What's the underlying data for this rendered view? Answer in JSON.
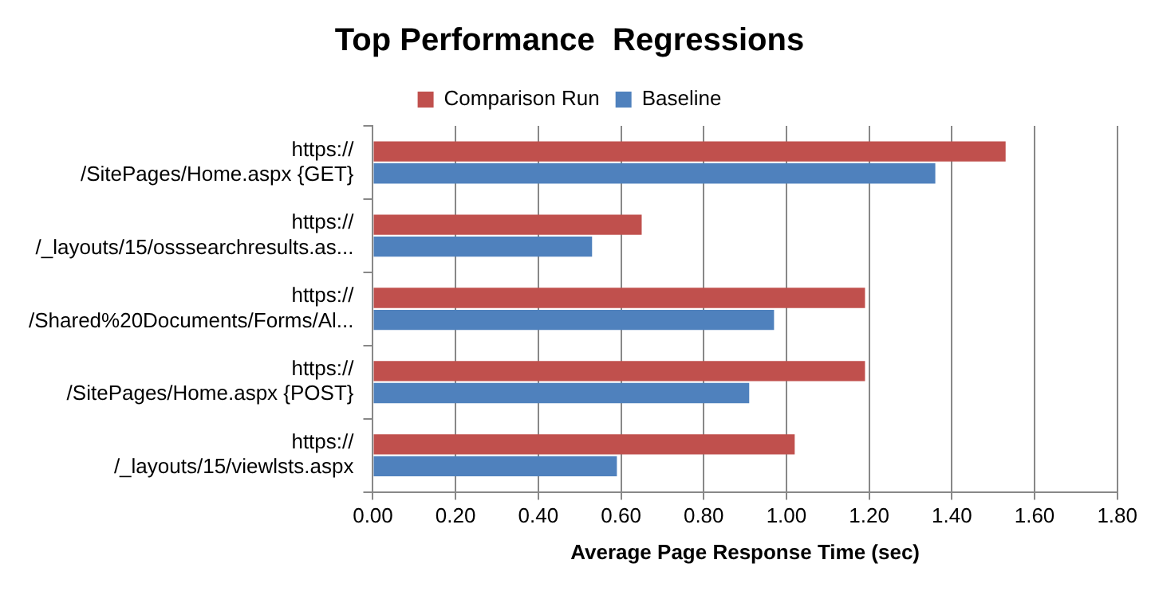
{
  "chart_data": {
    "type": "bar",
    "orientation": "horizontal",
    "title": "Top Performance  Regressions",
    "xlabel": "Average Page Response Time (sec)",
    "categories": [
      "https://\n/SitePages/Home.aspx {GET}",
      "https://\n/_layouts/15/osssearchresults.as...",
      "https://\n/Shared%20Documents/Forms/Al...",
      "https://\n/SitePages/Home.aspx {POST}",
      "https://\n/_layouts/15/viewlsts.aspx"
    ],
    "series": [
      {
        "name": "Comparison Run",
        "color": "#c0504d",
        "values": [
          1.53,
          0.65,
          1.19,
          1.19,
          1.02
        ]
      },
      {
        "name": "Baseline",
        "color": "#4f81bd",
        "values": [
          1.36,
          0.53,
          0.97,
          0.91,
          0.59
        ]
      }
    ],
    "xlim": [
      0,
      1.8
    ],
    "xticks": [
      {
        "value": 0,
        "label": "0.00"
      },
      {
        "value": 0.2,
        "label": "0.20"
      },
      {
        "value": 0.4,
        "label": "0.40"
      },
      {
        "value": 0.6,
        "label": "0.60"
      },
      {
        "value": 0.8,
        "label": "0.80"
      },
      {
        "value": 1,
        "label": "1.00"
      },
      {
        "value": 1.2,
        "label": "1.20"
      },
      {
        "value": 1.4,
        "label": "1.40"
      },
      {
        "value": 1.6,
        "label": "1.60"
      },
      {
        "value": 1.8,
        "label": "1.80"
      }
    ],
    "grid": "x",
    "legend": "top"
  }
}
